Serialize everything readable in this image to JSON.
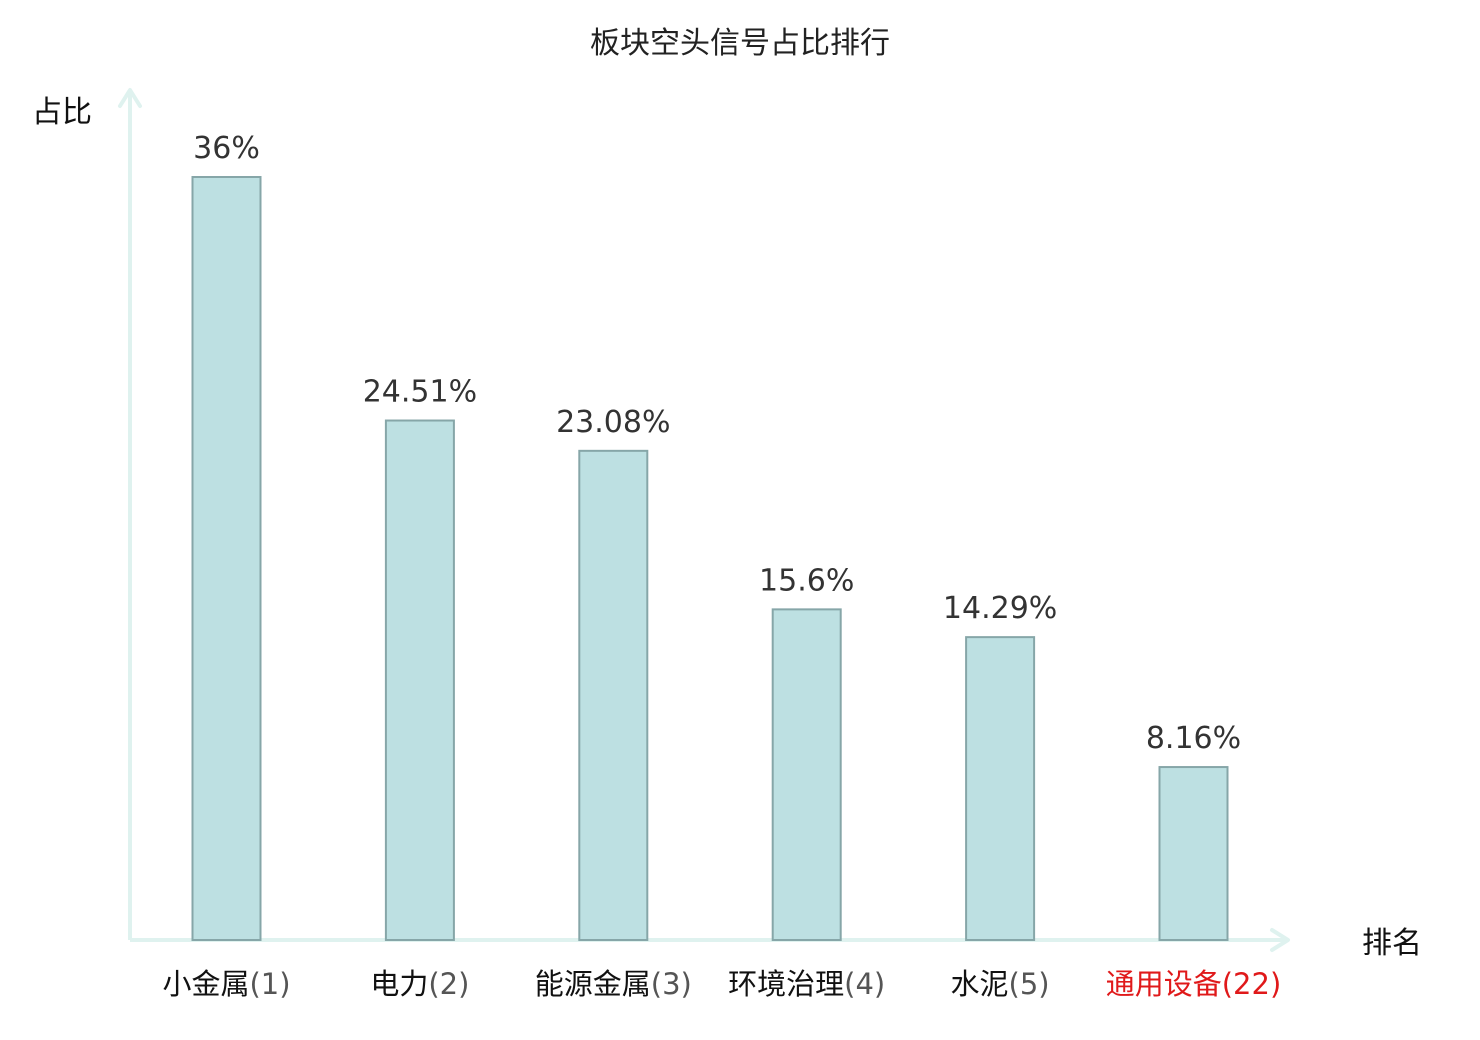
{
  "chart_data": {
    "type": "bar",
    "title": "板块空头信号占比排行",
    "ylabel": "占比",
    "xlabel": "排名",
    "ylim": [
      0,
      40
    ],
    "grid": false,
    "legend": "none",
    "categories": [
      {
        "name": "小金属",
        "rank": "(1)",
        "highlight": false
      },
      {
        "name": "电力",
        "rank": "(2)",
        "highlight": false
      },
      {
        "name": "能源金属",
        "rank": "(3)",
        "highlight": false
      },
      {
        "name": "环境治理",
        "rank": "(4)",
        "highlight": false
      },
      {
        "name": "水泥",
        "rank": "(5)",
        "highlight": false
      },
      {
        "name": "通用设备",
        "rank": "(22)",
        "highlight": true
      }
    ],
    "values": [
      36,
      24.51,
      23.08,
      15.6,
      14.29,
      8.16
    ],
    "value_labels": [
      "36%",
      "24.51%",
      "23.08%",
      "15.6%",
      "14.29%",
      "8.16%"
    ],
    "colors": {
      "bar_fill": "#bde0e2",
      "bar_stroke": "#86a6a8",
      "axis": "#dff2ef",
      "category_text": "#111111",
      "rank_text": "#555555",
      "highlight_text": "#e0191a"
    }
  }
}
